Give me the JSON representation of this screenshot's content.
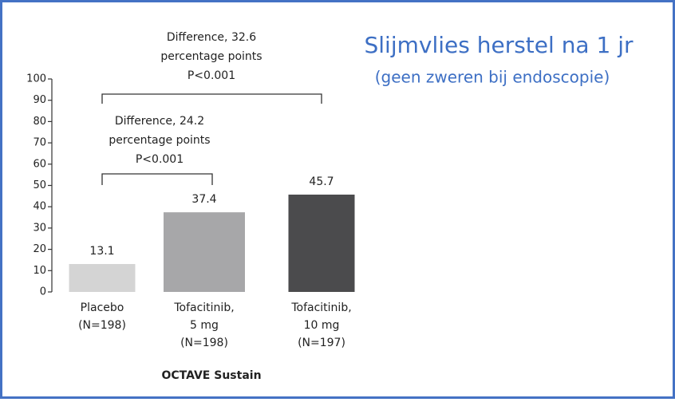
{
  "chart_data": {
    "type": "bar",
    "title": "Slijmvlies herstel na 1 jr",
    "subtitle": "(geen zweren bij endoscopie)",
    "x_label": "OCTAVE Sustain",
    "categories": [
      [
        "Placebo",
        "(N=198)"
      ],
      [
        "Tofacitinib,",
        "5 mg",
        "(N=198)"
      ],
      [
        "Tofacitinib,",
        "10 mg",
        "(N=197)"
      ]
    ],
    "values": [
      13.1,
      37.4,
      45.7
    ],
    "colors": [
      "#d4d4d4",
      "#a7a7a9",
      "#4b4b4d"
    ],
    "ylim": [
      0,
      100
    ],
    "yticks": [
      0,
      10,
      20,
      30,
      40,
      50,
      60,
      70,
      80,
      90,
      100
    ],
    "annotations": [
      [
        "Difference, 32.6",
        "percentage points",
        "P<0.001"
      ],
      [
        "Difference, 24.2",
        "percentage points",
        "P<0.001"
      ]
    ]
  }
}
